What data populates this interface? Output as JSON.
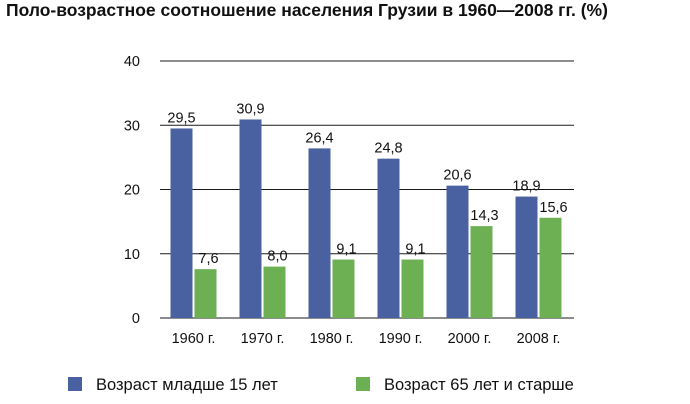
{
  "title": "Поло-возрастное соотношение населения Грузии в 1960—2008 гг. (%)",
  "chart_data": {
    "type": "bar",
    "title": "Поло-возрастное соотношение населения Грузии в 1960—2008 гг. (%)",
    "categories": [
      "1960 г.",
      "1970 г.",
      "1980 г.",
      "1990 г.",
      "2000 г.",
      "2008 г."
    ],
    "series": [
      {
        "name": "Возраст младше 15 лет",
        "values": [
          29.5,
          30.9,
          26.4,
          24.8,
          20.6,
          18.9
        ],
        "labels": [
          "29,5",
          "30,9",
          "26,4",
          "24,8",
          "20,6",
          "18,9"
        ],
        "color": "#4a61a1"
      },
      {
        "name": "Возраст 65 лет и старше",
        "values": [
          7.6,
          8.0,
          9.1,
          9.1,
          14.3,
          15.6
        ],
        "labels": [
          "7,6",
          "8,0",
          "9,1",
          "9,1",
          "14,3",
          "15,6"
        ],
        "color": "#6daf53"
      }
    ],
    "yticks": [
      "0",
      "10",
      "20",
      "30",
      "40"
    ],
    "ylim": [
      0,
      40
    ],
    "grid": true,
    "legend_position": "bottom"
  }
}
